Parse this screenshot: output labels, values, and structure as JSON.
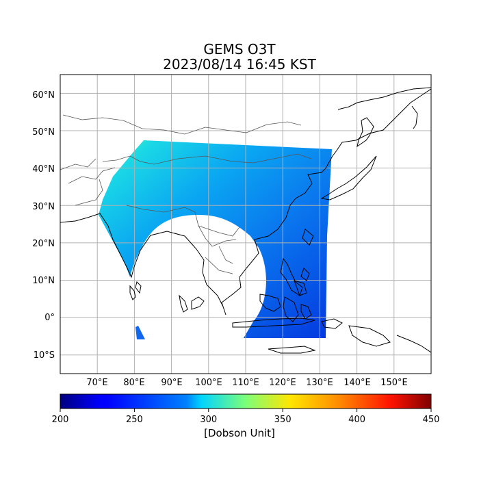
{
  "title": "GEMS O3T",
  "subtitle": "2023/08/14 16:45 KST",
  "map": {
    "lon_range": [
      60,
      160
    ],
    "lat_range": [
      -15,
      65
    ],
    "lon_ticks": [
      "70°E",
      "80°E",
      "90°E",
      "100°E",
      "110°E",
      "120°E",
      "130°E",
      "140°E",
      "150°E"
    ],
    "lat_ticks": [
      "60°N",
      "50°N",
      "40°N",
      "30°N",
      "20°N",
      "10°N",
      "0°",
      "10°S"
    ],
    "gridlines": true
  },
  "colorbar": {
    "colormap": "jet",
    "ticks": [
      "200",
      "250",
      "300",
      "350",
      "400",
      "450"
    ],
    "min": 200,
    "max": 450,
    "label": "[Dobson Unit]"
  },
  "colors": {
    "grid": "#b0b0b0",
    "coast": "#000000",
    "border": "#555555"
  }
}
